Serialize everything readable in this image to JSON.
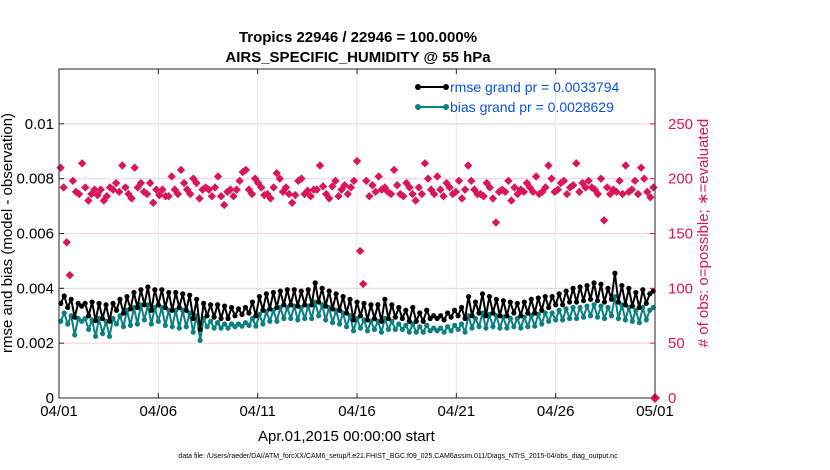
{
  "chart_data": {
    "type": "line",
    "title_line1": "Tropics 22946 / 22946 = 100.000%",
    "title_line2": "AIRS_SPECIFIC_HUMIDITY @ 55 hPa",
    "xlabel": "Apr.01,2015 00:00:00 start",
    "ylabel": "rmse and bias (model - observation)",
    "ylabel_right": "# of obs: o=possible; ∗=evaluated",
    "footer": "data file: /Users/raeder/DAI/ATM_forcXX/CAM6_setup/f.e21.FHIST_BGC.f09_025.CAM6assim.011/Diags_NTrS_2015-04/obs_diag_output.nc",
    "xlim": [
      0,
      30
    ],
    "ylim": [
      0,
      0.012
    ],
    "ylim_right": [
      0,
      300
    ],
    "x_ticks": [
      0,
      5,
      10,
      15,
      20,
      25,
      30
    ],
    "x_tick_labels": [
      "04/01",
      "04/06",
      "04/11",
      "04/16",
      "04/21",
      "04/26",
      "05/01"
    ],
    "y_ticks": [
      0,
      0.002,
      0.004,
      0.006,
      0.008,
      0.01
    ],
    "y_tick_labels": [
      "0",
      "0.002",
      "0.004",
      "0.006",
      "0.008",
      "0.01"
    ],
    "y_right_ticks": [
      0,
      50,
      100,
      150,
      200,
      250
    ],
    "y_right_tick_labels": [
      "0",
      "50",
      "100",
      "150",
      "200",
      "250"
    ],
    "grid": true,
    "legend_position": "top-right",
    "colors": {
      "rmse": "#000000",
      "bias": "#0b8080",
      "obs": "#d8175a",
      "legend_text": "#0a55d8"
    },
    "series": [
      {
        "name": "rmse grand pr = 0.0033794",
        "marker": "circle",
        "values": [
          0.00345,
          0.00372,
          0.0033,
          0.0036,
          0.00295,
          0.00345,
          0.00335,
          0.00345,
          0.003,
          0.0035,
          0.00282,
          0.00345,
          0.0029,
          0.0034,
          0.0028,
          0.00345,
          0.0032,
          0.0036,
          0.0031,
          0.0037,
          0.00325,
          0.00385,
          0.0033,
          0.00395,
          0.0034,
          0.00405,
          0.0032,
          0.00395,
          0.0034,
          0.00395,
          0.0033,
          0.00385,
          0.0032,
          0.00385,
          0.0033,
          0.0038,
          0.0032,
          0.00375,
          0.0029,
          0.0036,
          0.0025,
          0.00345,
          0.003,
          0.0034,
          0.00295,
          0.0034,
          0.0029,
          0.00335,
          0.0029,
          0.0033,
          0.003,
          0.00325,
          0.00305,
          0.0033,
          0.0031,
          0.0035,
          0.003,
          0.0037,
          0.0032,
          0.0038,
          0.00325,
          0.00385,
          0.0033,
          0.0039,
          0.0034,
          0.00395,
          0.0034,
          0.00395,
          0.00335,
          0.0039,
          0.0034,
          0.00395,
          0.0034,
          0.0042,
          0.0035,
          0.004,
          0.00335,
          0.0039,
          0.00325,
          0.0038,
          0.0032,
          0.0037,
          0.0031,
          0.0036,
          0.00285,
          0.0035,
          0.003,
          0.00345,
          0.00285,
          0.0034,
          0.0029,
          0.0034,
          0.0028,
          0.0036,
          0.0029,
          0.0034,
          0.00295,
          0.0033,
          0.0029,
          0.0032,
          0.0028,
          0.0033,
          0.0028,
          0.0031,
          0.0028,
          0.0032,
          0.0029,
          0.003,
          0.0029,
          0.003,
          0.00285,
          0.0031,
          0.00295,
          0.0032,
          0.003,
          0.0033,
          0.0029,
          0.0037,
          0.003,
          0.0035,
          0.0031,
          0.0038,
          0.003,
          0.0037,
          0.0031,
          0.0036,
          0.003,
          0.00355,
          0.003,
          0.0035,
          0.0031,
          0.00345,
          0.003,
          0.0035,
          0.0031,
          0.0036,
          0.0031,
          0.00365,
          0.0032,
          0.0037,
          0.0033,
          0.0037,
          0.0034,
          0.0038,
          0.0034,
          0.0039,
          0.0035,
          0.004,
          0.0035,
          0.00405,
          0.00355,
          0.0041,
          0.0036,
          0.0042,
          0.00355,
          0.00415,
          0.0035,
          0.004,
          0.0036,
          0.00455,
          0.0035,
          0.0041,
          0.0034,
          0.004,
          0.00335,
          0.00385,
          0.0033,
          0.00395,
          0.00345,
          0.0038,
          0.0039
        ]
      },
      {
        "name": "bias grand pr = 0.0028629",
        "marker": "circle",
        "values": [
          0.0028,
          0.0031,
          0.0027,
          0.003,
          0.0023,
          0.0029,
          0.0028,
          0.0029,
          0.0025,
          0.00285,
          0.00225,
          0.0029,
          0.00235,
          0.0028,
          0.00225,
          0.0029,
          0.0027,
          0.003,
          0.0026,
          0.0032,
          0.00265,
          0.0033,
          0.0027,
          0.0034,
          0.00285,
          0.0034,
          0.0027,
          0.0033,
          0.0028,
          0.0033,
          0.00265,
          0.0032,
          0.0026,
          0.0032,
          0.00255,
          0.0032,
          0.0026,
          0.0031,
          0.0024,
          0.003,
          0.0021,
          0.0029,
          0.0026,
          0.0028,
          0.00255,
          0.00275,
          0.00255,
          0.0027,
          0.00255,
          0.0027,
          0.0026,
          0.0027,
          0.00262,
          0.00275,
          0.00265,
          0.0029,
          0.00262,
          0.00305,
          0.0027,
          0.00315,
          0.0028,
          0.0032,
          0.0028,
          0.0033,
          0.0029,
          0.0033,
          0.0029,
          0.00335,
          0.00285,
          0.0033,
          0.0029,
          0.00335,
          0.0029,
          0.0035,
          0.003,
          0.0034,
          0.00285,
          0.0033,
          0.00275,
          0.0032,
          0.0027,
          0.0031,
          0.0026,
          0.003,
          0.00245,
          0.0029,
          0.00255,
          0.00285,
          0.00245,
          0.0028,
          0.0025,
          0.0028,
          0.0024,
          0.0029,
          0.0025,
          0.0028,
          0.0025,
          0.0027,
          0.0025,
          0.00265,
          0.0024,
          0.0027,
          0.0024,
          0.0026,
          0.0024,
          0.00265,
          0.00245,
          0.00255,
          0.00245,
          0.00255,
          0.0024,
          0.0026,
          0.00245,
          0.00265,
          0.0025,
          0.0027,
          0.0024,
          0.003,
          0.00255,
          0.0029,
          0.0026,
          0.0031,
          0.00255,
          0.00305,
          0.0026,
          0.003,
          0.00255,
          0.00295,
          0.00255,
          0.0029,
          0.0026,
          0.0029,
          0.00255,
          0.00295,
          0.0026,
          0.003,
          0.00262,
          0.00305,
          0.0027,
          0.0031,
          0.0028,
          0.0031,
          0.00285,
          0.0032,
          0.00285,
          0.00325,
          0.0029,
          0.0033,
          0.0029,
          0.0033,
          0.00295,
          0.00335,
          0.003,
          0.0034,
          0.00295,
          0.00335,
          0.0029,
          0.0033,
          0.003,
          0.0037,
          0.0029,
          0.0034,
          0.00285,
          0.0033,
          0.0028,
          0.0032,
          0.00275,
          0.0033,
          0.00285,
          0.0032,
          0.0033
        ]
      }
    ],
    "obs_counts": {
      "name": "# of obs (evaluated)",
      "marker": "diamond",
      "values": [
        210,
        192,
        142,
        112,
        198,
        188,
        186,
        214,
        192,
        180,
        186,
        190,
        185,
        190,
        180,
        184,
        192,
        190,
        196,
        188,
        212,
        192,
        186,
        182,
        210,
        192,
        196,
        188,
        186,
        196,
        178,
        190,
        185,
        190,
        184,
        184,
        202,
        190,
        186,
        208,
        196,
        190,
        186,
        200,
        196,
        182,
        190,
        192,
        190,
        184,
        192,
        202,
        184,
        176,
        188,
        190,
        184,
        190,
        198,
        206,
        208,
        190,
        186,
        200,
        196,
        192,
        185,
        186,
        182,
        192,
        205,
        200,
        188,
        192,
        186,
        178,
        185,
        198,
        200,
        186,
        189,
        184,
        190,
        190,
        212,
        193,
        186,
        182,
        193,
        198,
        184,
        190,
        194,
        186,
        192,
        198,
        216,
        134,
        104,
        198,
        184,
        194,
        188,
        202,
        190,
        192,
        188,
        186,
        208,
        194,
        186,
        184,
        196,
        192,
        186,
        180,
        192,
        186,
        214,
        200,
        190,
        186,
        202,
        190,
        184,
        196,
        192,
        186,
        188,
        198,
        182,
        190,
        212,
        198,
        190,
        186,
        186,
        184,
        196,
        192,
        182,
        160,
        188,
        190,
        188,
        198,
        180,
        192,
        186,
        190,
        188,
        196,
        192,
        188,
        202,
        186,
        188,
        192,
        212,
        200,
        188,
        190,
        196,
        198,
        186,
        192,
        194,
        214,
        188,
        196,
        192,
        198,
        192,
        190,
        186,
        200,
        162,
        192,
        186,
        190,
        188,
        198,
        186,
        212,
        188,
        190,
        198,
        186,
        210,
        200,
        188,
        183,
        192
      ],
      "final_possible": 0
    }
  }
}
